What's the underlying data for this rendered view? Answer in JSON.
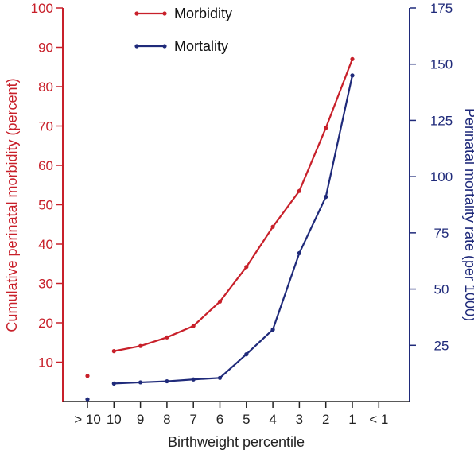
{
  "chart_data": {
    "type": "line",
    "xlabel": "Birthweight percentile",
    "ylabel_left": "Cumulative perinatal morbidity (percent)",
    "ylabel_right": "Perinatal mortality rate (per 1000)",
    "x_categories": [
      "> 10",
      "10",
      "9",
      "8",
      "7",
      "6",
      "5",
      "4",
      "3",
      "2",
      "1",
      "< 1"
    ],
    "left_axis": {
      "min": 0,
      "max": 100,
      "ticks": [
        10,
        20,
        30,
        40,
        50,
        60,
        70,
        80,
        90,
        100
      ],
      "color": "#c8202a"
    },
    "right_axis": {
      "min": 0,
      "max": 175,
      "ticks": [
        25,
        50,
        75,
        100,
        125,
        150,
        175
      ],
      "color": "#1f2a7a"
    },
    "legend_placement": "top-center",
    "series": [
      {
        "name": "Morbidity",
        "axis": "left",
        "color": "#c8202a",
        "isolated_point": {
          "x": "> 10",
          "y": 6.5
        },
        "points": [
          {
            "x": "10",
            "y": 12.8
          },
          {
            "x": "9",
            "y": 14.1
          },
          {
            "x": "8",
            "y": 16.3
          },
          {
            "x": "7",
            "y": 19.2
          },
          {
            "x": "6",
            "y": 25.4
          },
          {
            "x": "5",
            "y": 34.2
          },
          {
            "x": "4",
            "y": 44.4
          },
          {
            "x": "3",
            "y": 53.5
          },
          {
            "x": "2",
            "y": 69.5
          },
          {
            "x": "1",
            "y": 87.0
          }
        ]
      },
      {
        "name": "Mortality",
        "axis": "right",
        "color": "#1f2a7a",
        "isolated_point": {
          "x": "> 10",
          "y": 1
        },
        "points": [
          {
            "x": "10",
            "y": 8
          },
          {
            "x": "9",
            "y": 8.5
          },
          {
            "x": "8",
            "y": 9
          },
          {
            "x": "7",
            "y": 9.8
          },
          {
            "x": "6",
            "y": 10.5
          },
          {
            "x": "5",
            "y": 21
          },
          {
            "x": "4",
            "y": 32
          },
          {
            "x": "3",
            "y": 66
          },
          {
            "x": "2",
            "y": 91
          },
          {
            "x": "1",
            "y": 145
          }
        ]
      }
    ]
  }
}
